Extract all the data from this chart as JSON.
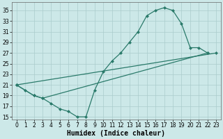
{
  "title": "",
  "xlabel": "Humidex (Indice chaleur)",
  "bg_color": "#cce8e8",
  "line_color": "#2a7a6a",
  "xlim": [
    -0.5,
    23.5
  ],
  "ylim": [
    14.5,
    36.5
  ],
  "yticks": [
    15,
    17,
    19,
    21,
    23,
    25,
    27,
    29,
    31,
    33,
    35
  ],
  "xticks": [
    0,
    1,
    2,
    3,
    4,
    5,
    6,
    7,
    8,
    9,
    10,
    11,
    12,
    13,
    14,
    15,
    16,
    17,
    18,
    19,
    20,
    21,
    22,
    23
  ],
  "line1_x": [
    0,
    1,
    2,
    3,
    4,
    5,
    6,
    7,
    8,
    9,
    10,
    11,
    12,
    13,
    14,
    15,
    16,
    17,
    18,
    19,
    20,
    21,
    22
  ],
  "line1_y": [
    21,
    20,
    19,
    18.5,
    17.5,
    16.5,
    16,
    15,
    15,
    20,
    23.5,
    25.5,
    27,
    29,
    31,
    34,
    35,
    35.5,
    35,
    32.5,
    28,
    28,
    27
  ],
  "line2_x": [
    0,
    2,
    3,
    22
  ],
  "line2_y": [
    21,
    19,
    18.5,
    27
  ],
  "line3_x": [
    0,
    23
  ],
  "line3_y": [
    21,
    27
  ],
  "font_size_label": 7,
  "font_size_tick": 5.5,
  "marker": "D",
  "marker_size": 2.0,
  "linewidth": 0.9,
  "grid_color": "#aacccc",
  "grid_lw": 0.5
}
